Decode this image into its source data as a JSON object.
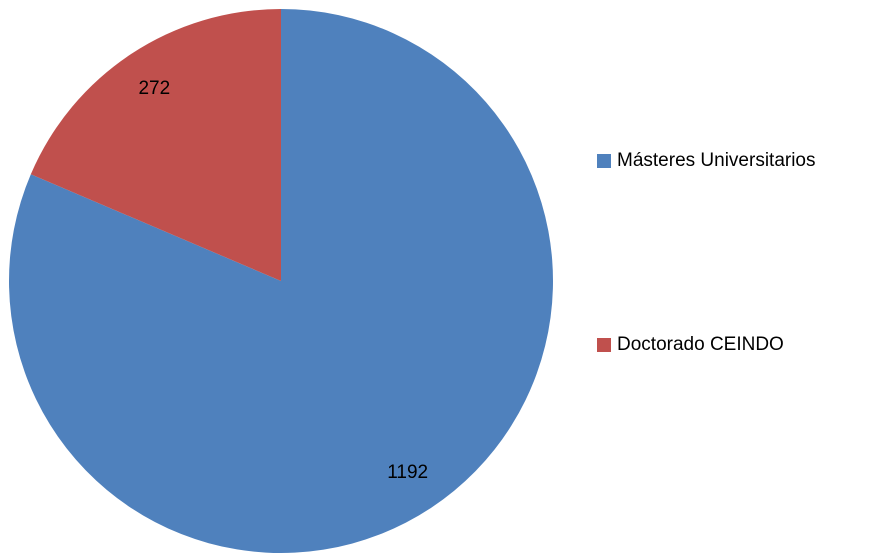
{
  "chart_data": {
    "type": "pie",
    "categories": [
      "Másteres Universitarios",
      "Doctorado CEINDO"
    ],
    "values": [
      1192,
      272
    ],
    "colors": [
      "#4f81bd",
      "#c0504d"
    ],
    "start_angle": 0,
    "direction": "clockwise",
    "data_labels": true,
    "legend": "right"
  }
}
